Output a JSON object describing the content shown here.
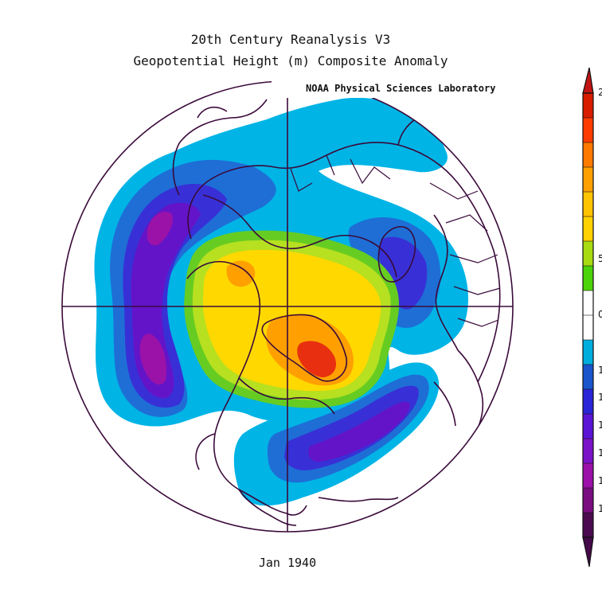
{
  "title_line1": "20th Century Reanalysis V3",
  "title_line2": "Geopotential Height (m) Composite Anomaly",
  "credit": "NOAA Physical Sciences Laboratory",
  "date_label": "Jan 1940",
  "colorbar": {
    "colors": [
      "#4c0a4f",
      "#7a0d80",
      "#9b10a8",
      "#7a12c8",
      "#5a14d6",
      "#2a24d8",
      "#1a55cc",
      "#00aede",
      "#ffffff",
      "#ffffff",
      "#4cd40a",
      "#a8dc10",
      "#ffd200",
      "#ffc400",
      "#ffa000",
      "#ff7a00",
      "#ff3c00",
      "#d81c00"
    ],
    "arrow_top": "#c11414",
    "arrow_bottom": "#450a4a",
    "visible_tick_labels": [
      "2",
      "5",
      "0",
      "1",
      "1",
      "1",
      "1",
      "1",
      "1"
    ]
  },
  "anomaly_colors": {
    "strong_positive": "#e83010",
    "positive_orange": "#ff9a00",
    "positive_yellow": "#ffd800",
    "weak_positive": "#b6e020",
    "weakest_positive": "#66cc22",
    "weak_negative": "#00b4e6",
    "negative": "#1e6ed6",
    "strong_negative": "#3830d6",
    "stronger_negative": "#6414c8",
    "strongest_negative": "#9a12a8"
  },
  "map_elements": {
    "boundary_color": "#3a0a3a",
    "graticule": "equator circle with 0-180 and 90E-90W meridian lines"
  }
}
